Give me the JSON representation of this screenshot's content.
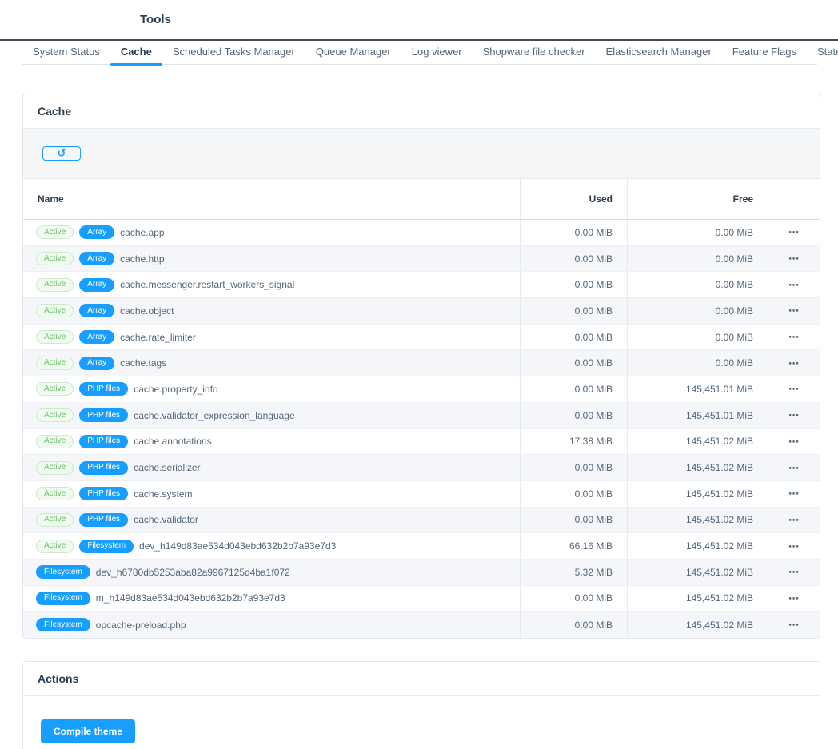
{
  "header": {
    "title": "Tools"
  },
  "tabs": [
    {
      "label": "System Status",
      "active": false
    },
    {
      "label": "Cache",
      "active": true
    },
    {
      "label": "Scheduled Tasks Manager",
      "active": false
    },
    {
      "label": "Queue Manager",
      "active": false
    },
    {
      "label": "Log viewer",
      "active": false
    },
    {
      "label": "Shopware file checker",
      "active": false
    },
    {
      "label": "Elasticsearch Manager",
      "active": false
    },
    {
      "label": "Feature Flags",
      "active": false
    },
    {
      "label": "State Machine Viewer",
      "active": false
    }
  ],
  "icons": {
    "refresh": "↺",
    "context_menu": "⋯"
  },
  "cache_card": {
    "title": "Cache",
    "table": {
      "columns": {
        "name": "Name",
        "used": "Used",
        "free": "Free"
      },
      "active_badge_label": "Active",
      "rows": [
        {
          "active": true,
          "type": "Array",
          "name": "cache.app",
          "used": "0.00 MiB",
          "free": "0.00 MiB"
        },
        {
          "active": true,
          "type": "Array",
          "name": "cache.http",
          "used": "0.00 MiB",
          "free": "0.00 MiB"
        },
        {
          "active": true,
          "type": "Array",
          "name": "cache.messenger.restart_workers_signal",
          "used": "0.00 MiB",
          "free": "0.00 MiB"
        },
        {
          "active": true,
          "type": "Array",
          "name": "cache.object",
          "used": "0.00 MiB",
          "free": "0.00 MiB"
        },
        {
          "active": true,
          "type": "Array",
          "name": "cache.rate_limiter",
          "used": "0.00 MiB",
          "free": "0.00 MiB"
        },
        {
          "active": true,
          "type": "Array",
          "name": "cache.tags",
          "used": "0.00 MiB",
          "free": "0.00 MiB"
        },
        {
          "active": true,
          "type": "PHP files",
          "name": "cache.property_info",
          "used": "0.00 MiB",
          "free": "145,451.01 MiB"
        },
        {
          "active": true,
          "type": "PHP files",
          "name": "cache.validator_expression_language",
          "used": "0.00 MiB",
          "free": "145,451.01 MiB"
        },
        {
          "active": true,
          "type": "PHP files",
          "name": "cache.annotations",
          "used": "17.38 MiB",
          "free": "145,451.02 MiB"
        },
        {
          "active": true,
          "type": "PHP files",
          "name": "cache.serializer",
          "used": "0.00 MiB",
          "free": "145,451.02 MiB"
        },
        {
          "active": true,
          "type": "PHP files",
          "name": "cache.system",
          "used": "0.00 MiB",
          "free": "145,451.02 MiB"
        },
        {
          "active": true,
          "type": "PHP files",
          "name": "cache.validator",
          "used": "0.00 MiB",
          "free": "145,451.02 MiB"
        },
        {
          "active": true,
          "type": "Filesystem",
          "name": "dev_h149d83ae534d043ebd632b2b7a93e7d3",
          "used": "66.16 MiB",
          "free": "145,451.02 MiB"
        },
        {
          "active": false,
          "type": "Filesystem",
          "name": "dev_h6780db5253aba82a9967125d4ba1f072",
          "used": "5.32 MiB",
          "free": "145,451.02 MiB"
        },
        {
          "active": false,
          "type": "Filesystem",
          "name": "m_h149d83ae534d043ebd632b2b7a93e7d3",
          "used": "0.00 MiB",
          "free": "145,451.02 MiB"
        },
        {
          "active": false,
          "type": "Filesystem",
          "name": "opcache-preload.php",
          "used": "0.00 MiB",
          "free": "145,451.02 MiB"
        }
      ]
    }
  },
  "actions_card": {
    "title": "Actions",
    "compile_theme_label": "Compile theme"
  },
  "colors": {
    "primary_blue": "#189eff",
    "active_green_text": "#68c168",
    "active_green_bg": "#f0faf0",
    "active_green_border": "#cdeacd",
    "text_dark": "#2b3d51",
    "text_gray": "#52667a",
    "header_divider": "#414b5a"
  }
}
